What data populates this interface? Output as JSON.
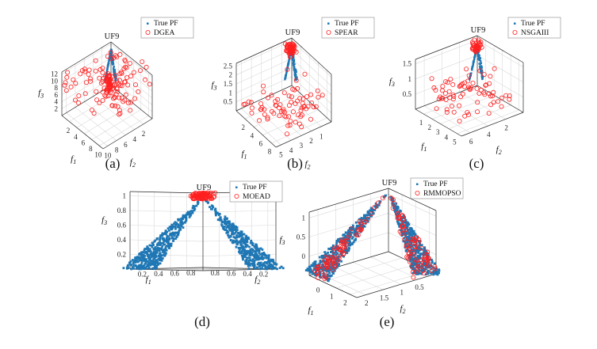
{
  "figure": {
    "caption_style": "letters"
  },
  "colors": {
    "true_pf": "#1f77b4",
    "algo": "#ff2020",
    "grid": "#d9d9d9",
    "axis": "#262626"
  },
  "chart_data": [
    {
      "id": "a",
      "type": "scatter",
      "title": "UF9",
      "caption": "(a)",
      "xlabel": "f1",
      "ylabel": "f2",
      "zlabel": "f3",
      "xticks": [
        "2",
        "4",
        "6",
        "8",
        "10"
      ],
      "yticks": [
        "2",
        "4",
        "6",
        "8",
        "10"
      ],
      "zticks": [
        "2",
        "4",
        "6",
        "8",
        "10",
        "12"
      ],
      "xlim": [
        0,
        12
      ],
      "ylim": [
        0,
        12
      ],
      "zlim": [
        0,
        12
      ],
      "legend": [
        "True PF",
        "DGEA"
      ],
      "legend_position": "top-right",
      "series": [
        {
          "name": "True PF",
          "type": "scatter",
          "marker": "dot",
          "spread": "small",
          "points": []
        },
        {
          "name": "DGEA",
          "type": "scatter",
          "marker": "circle",
          "spread": "wide",
          "count": 150,
          "points": []
        }
      ]
    },
    {
      "id": "b",
      "type": "scatter",
      "title": "UF9",
      "caption": "(b)",
      "xlabel": "f1",
      "ylabel": "f2",
      "zlabel": "f3",
      "xticks": [
        "2",
        "4",
        "6",
        "8"
      ],
      "yticks": [
        "1",
        "2",
        "3",
        "4",
        "5"
      ],
      "zticks": [
        "0.5",
        "1",
        "1.5",
        "2",
        "2.5"
      ],
      "xlim": [
        0,
        8
      ],
      "ylim": [
        0,
        6
      ],
      "zlim": [
        0,
        2.8
      ],
      "legend": [
        "True PF",
        "SPEAR"
      ],
      "legend_position": "top-right",
      "series": [
        {
          "name": "True PF",
          "type": "scatter",
          "marker": "dot",
          "spread": "small",
          "points": []
        },
        {
          "name": "SPEAR",
          "type": "scatter",
          "marker": "circle",
          "spread": "medium",
          "count": 130,
          "points": []
        }
      ]
    },
    {
      "id": "c",
      "type": "scatter",
      "title": "UF9",
      "caption": "(c)",
      "xlabel": "f1",
      "ylabel": "f2",
      "zlabel": "f3",
      "xticks": [
        "1",
        "2",
        "3",
        "4",
        "5"
      ],
      "yticks": [
        "2",
        "4",
        "6"
      ],
      "zticks": [
        "0.5",
        "1",
        "1.5"
      ],
      "xlim": [
        0,
        6
      ],
      "ylim": [
        0,
        6
      ],
      "zlim": [
        0,
        1.7
      ],
      "legend": [
        "True PF",
        "NSGAIII"
      ],
      "legend_position": "top-right",
      "series": [
        {
          "name": "True PF",
          "type": "scatter",
          "marker": "dot",
          "spread": "small",
          "points": []
        },
        {
          "name": "NSGAIII",
          "type": "scatter",
          "marker": "circle",
          "spread": "medium",
          "count": 110,
          "points": []
        }
      ]
    },
    {
      "id": "d",
      "type": "scatter",
      "title": "UF9",
      "caption": "(d)",
      "xlabel": "f1",
      "ylabel": "f2",
      "zlabel": "f3",
      "xticks": [
        "0.2",
        "0.4",
        "0.6",
        "0.8"
      ],
      "yticks": [
        "0.2",
        "0.4",
        "0.6",
        "0.8"
      ],
      "zticks": [
        "0.2",
        "0.4",
        "0.6",
        "0.8",
        "1"
      ],
      "xlim": [
        0,
        1
      ],
      "ylim": [
        0,
        1
      ],
      "zlim": [
        0,
        1
      ],
      "legend": [
        "True PF",
        "MOEAD"
      ],
      "legend_position": "top-right",
      "series": [
        {
          "name": "True PF",
          "type": "scatter",
          "marker": "dot",
          "spread": "pareto",
          "points": []
        },
        {
          "name": "MOEAD",
          "type": "scatter",
          "marker": "circle",
          "spread": "top",
          "count": 90,
          "points": []
        }
      ]
    },
    {
      "id": "e",
      "type": "scatter",
      "title": "UF9",
      "caption": "(e)",
      "xlabel": "f1",
      "ylabel": "f2",
      "zlabel": "f3",
      "xticks": [
        "0",
        "1",
        "2"
      ],
      "yticks": [
        "0.5",
        "1",
        "1.5",
        "2"
      ],
      "zticks": [
        "0",
        "0.5",
        "1"
      ],
      "xlim": [
        0,
        2
      ],
      "ylim": [
        0,
        2
      ],
      "zlim": [
        0,
        1
      ],
      "legend": [
        "True PF",
        "RMMOPSO"
      ],
      "legend_position": "top-right",
      "series": [
        {
          "name": "True PF",
          "type": "scatter",
          "marker": "dot",
          "spread": "pareto",
          "points": []
        },
        {
          "name": "RMMOPSO",
          "type": "scatter",
          "marker": "circle",
          "spread": "pareto",
          "count": 160,
          "points": []
        }
      ]
    }
  ]
}
